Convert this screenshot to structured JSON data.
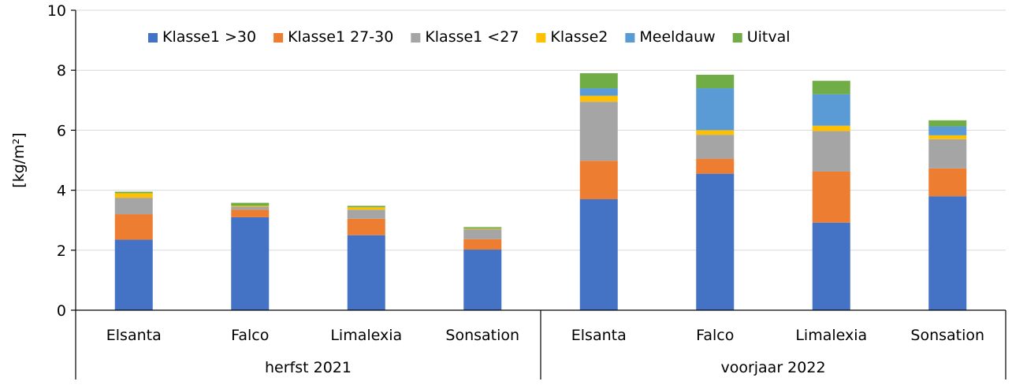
{
  "chart_data": {
    "type": "bar",
    "stacked": true,
    "ylabel": "[kg/m²]",
    "ylim": [
      0,
      10
    ],
    "yticks": [
      0,
      2,
      4,
      6,
      8,
      10
    ],
    "grid": true,
    "legend_position": "top",
    "groups": [
      {
        "label": "herfst 2021",
        "categories": [
          "Elsanta",
          "Falco",
          "Limalexia",
          "Sonsation"
        ]
      },
      {
        "label": "voorjaar 2022",
        "categories": [
          "Elsanta",
          "Falco",
          "Limalexia",
          "Sonsation"
        ]
      }
    ],
    "categories": [
      "Elsanta",
      "Falco",
      "Limalexia",
      "Sonsation",
      "Elsanta",
      "Falco",
      "Limalexia",
      "Sonsation"
    ],
    "series": [
      {
        "name": "Klasse1 >30",
        "color": "#4472C4",
        "values": [
          2.35,
          3.1,
          2.5,
          2.02,
          3.7,
          4.55,
          2.92,
          3.8
        ]
      },
      {
        "name": "Klasse1 27-30",
        "color": "#ED7D31",
        "values": [
          0.85,
          0.25,
          0.55,
          0.35,
          1.28,
          0.5,
          1.7,
          0.93
        ]
      },
      {
        "name": "Klasse1 <27",
        "color": "#A5A5A5",
        "values": [
          0.55,
          0.1,
          0.3,
          0.33,
          1.97,
          0.8,
          1.35,
          0.97
        ]
      },
      {
        "name": "Klasse2",
        "color": "#FFC000",
        "values": [
          0.15,
          0.03,
          0.08,
          0.02,
          0.2,
          0.15,
          0.18,
          0.13
        ]
      },
      {
        "name": "Meeldauw",
        "color": "#5B9BD5",
        "values": [
          0.0,
          0.0,
          0.0,
          0.0,
          0.25,
          1.4,
          1.05,
          0.3
        ]
      },
      {
        "name": "Uitval",
        "color": "#70AD47",
        "values": [
          0.05,
          0.1,
          0.05,
          0.05,
          0.5,
          0.45,
          0.45,
          0.2
        ]
      }
    ]
  }
}
